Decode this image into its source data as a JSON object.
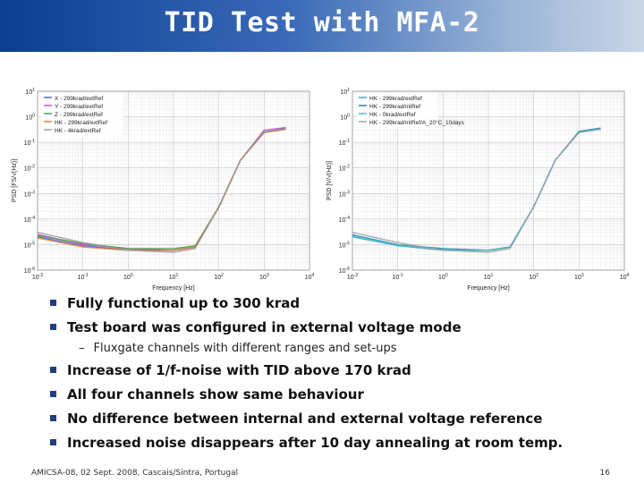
{
  "slide": {
    "title": "TID Test with MFA-2",
    "bullets": [
      "Fully functional up to 300 krad",
      "Test board was configured in external voltage mode"
    ],
    "sub_bullet": "Fluxgate channels with different ranges and set-ups",
    "bullets2": [
      "Increase of 1/f-noise with TID above 170 krad",
      "All four channels show same behaviour",
      "No difference between internal and external voltage reference",
      "Increased noise disappears after 10 day annealing at room temp."
    ],
    "footer": "AMICSA-08, 02 Sept. 2008, Cascais/Sintra, Portugal",
    "page_number": "16",
    "colors": {
      "title_dark": "#0b3d91",
      "title_light": "#c9d6e6",
      "bullet": "#1f3f7f"
    }
  },
  "chart_data": [
    {
      "type": "line",
      "xlabel": "Frequency [Hz]",
      "ylabel": "PSD [FS/√(Hz)]",
      "xscale": "log",
      "yscale": "log",
      "xlim": [
        0.01,
        10000
      ],
      "ylim": [
        1e-06,
        10
      ],
      "xticks": [
        "10-2",
        "10-1",
        "100",
        "101",
        "102",
        "103",
        "104"
      ],
      "yticks": [
        "10-6",
        "10-5",
        "10-4",
        "10-3",
        "10-2",
        "10-1",
        "100",
        "101"
      ],
      "legend_position": "top-left",
      "series": [
        {
          "name": "X - 299krad/extRef",
          "color": "#4a5ad0",
          "x": [
            0.01,
            0.1,
            1,
            10,
            30,
            100,
            300,
            1000,
            3000
          ],
          "y": [
            2e-05,
            9e-06,
            6e-06,
            6e-06,
            8e-06,
            0.0003,
            0.02,
            0.25,
            0.35
          ]
        },
        {
          "name": "Y - 299krad/extRef",
          "color": "#d040d0",
          "x": [
            0.01,
            0.1,
            1,
            10,
            30,
            100,
            300,
            1000,
            3000
          ],
          "y": [
            2.5e-05,
            1e-05,
            7e-06,
            6e-06,
            8e-06,
            0.0003,
            0.02,
            0.3,
            0.38
          ]
        },
        {
          "name": "Z - 299krad/extRef",
          "color": "#40a040",
          "x": [
            0.01,
            0.1,
            1,
            10,
            30,
            100,
            300,
            1000,
            3000
          ],
          "y": [
            2.2e-05,
            1.1e-05,
            7e-06,
            7e-06,
            9e-06,
            0.0003,
            0.02,
            0.26,
            0.33
          ]
        },
        {
          "name": "HK - 299krad/extRef",
          "color": "#e07a2a",
          "x": [
            0.01,
            0.1,
            1,
            10,
            30,
            100,
            300,
            1000,
            3000
          ],
          "y": [
            1.8e-05,
            8e-06,
            6e-06,
            6e-06,
            8e-06,
            0.00028,
            0.02,
            0.24,
            0.32
          ]
        },
        {
          "name": "HK - 4krad/extRef",
          "color": "#999999",
          "x": [
            0.01,
            0.1,
            1,
            10,
            30,
            100,
            300,
            1000,
            3000
          ],
          "y": [
            3e-05,
            1.2e-05,
            6e-06,
            5e-06,
            7e-06,
            0.0003,
            0.02,
            0.25,
            0.33
          ]
        }
      ]
    },
    {
      "type": "line",
      "xlabel": "Frequency [Hz]",
      "ylabel": "PSD [V/√(Hz)]",
      "xscale": "log",
      "yscale": "log",
      "xlim": [
        0.01,
        10000
      ],
      "ylim": [
        1e-06,
        10
      ],
      "xticks": [
        "10-2",
        "10-1",
        "100",
        "101",
        "102",
        "103",
        "104"
      ],
      "yticks": [
        "10-6",
        "10-5",
        "10-4",
        "10-3",
        "10-2",
        "10-1",
        "100",
        "101"
      ],
      "legend_position": "top-left",
      "series": [
        {
          "name": "HK - 299krad/extRef",
          "color": "#3aa0c8",
          "x": [
            0.01,
            0.1,
            1,
            10,
            30,
            100,
            300,
            1000,
            3000
          ],
          "y": [
            2e-05,
            9e-06,
            6e-06,
            6e-06,
            8e-06,
            0.0003,
            0.02,
            0.25,
            0.35
          ]
        },
        {
          "name": "HK - 299krad/intRef",
          "color": "#2a6ab0",
          "x": [
            0.01,
            0.1,
            1,
            10,
            30,
            100,
            300,
            1000,
            3000
          ],
          "y": [
            2.4e-05,
            1e-05,
            7e-06,
            6e-06,
            8e-06,
            0.0003,
            0.02,
            0.27,
            0.36
          ]
        },
        {
          "name": "HK - 0krad/extRef",
          "color": "#40c0c0",
          "x": [
            0.01,
            0.1,
            1,
            10,
            30,
            100,
            300,
            1000,
            3000
          ],
          "y": [
            2.2e-05,
            1e-05,
            6.5e-06,
            6e-06,
            8e-06,
            0.0003,
            0.02,
            0.26,
            0.34
          ]
        },
        {
          "name": "HK - 299krad/intRef/A_20°C_10days",
          "color": "#a0a0a0",
          "x": [
            0.01,
            0.1,
            1,
            10,
            30,
            100,
            300,
            1000,
            3000
          ],
          "y": [
            3e-05,
            1.2e-05,
            6e-06,
            5e-06,
            7e-06,
            0.0003,
            0.02,
            0.24,
            0.32
          ]
        }
      ]
    }
  ]
}
